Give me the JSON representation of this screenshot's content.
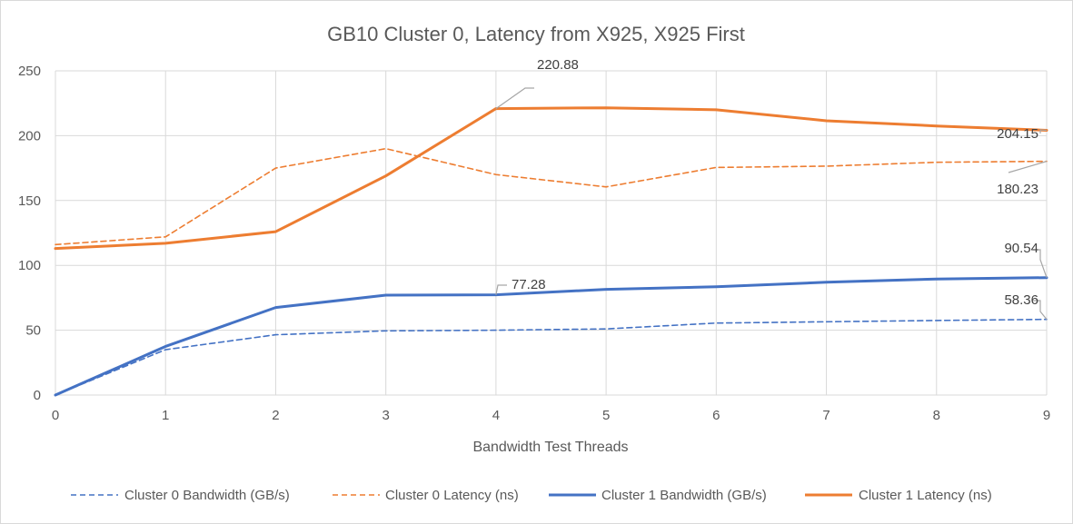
{
  "chart_data": {
    "type": "line",
    "title": "GB10 Cluster 0, Latency from X925, X925 First",
    "xlabel": "Bandwidth Test Threads",
    "ylabel": "",
    "x": [
      0,
      1,
      2,
      3,
      4,
      5,
      6,
      7,
      8,
      9
    ],
    "xlim": [
      0,
      9
    ],
    "ylim": [
      0,
      250
    ],
    "y_ticks": [
      0,
      50,
      100,
      150,
      200,
      250
    ],
    "grid": true,
    "legend_position": "bottom",
    "series": [
      {
        "name": "Cluster 0 Bandwidth (GB/s)",
        "color": "#4472c4",
        "dash": "dashed",
        "values": [
          0,
          35,
          46.5,
          49.5,
          50,
          51,
          55.5,
          56.5,
          57.5,
          58.36
        ]
      },
      {
        "name": "Cluster 0 Latency (ns)",
        "color": "#ed7d31",
        "dash": "dashed",
        "values": [
          116,
          122,
          175,
          190,
          170,
          160.5,
          175.5,
          176.5,
          179.5,
          180.23
        ]
      },
      {
        "name": "Cluster 1 Bandwidth (GB/s)",
        "color": "#4472c4",
        "dash": "solid",
        "values": [
          0,
          37.5,
          67.5,
          77,
          77.28,
          81.5,
          83.5,
          87,
          89.5,
          90.54
        ]
      },
      {
        "name": "Cluster 1 Latency (ns)",
        "color": "#ed7d31",
        "dash": "solid",
        "values": [
          113,
          117,
          126,
          169,
          220.88,
          221.5,
          220,
          211.5,
          207.5,
          204.15
        ]
      }
    ],
    "annotations": [
      {
        "series": 3,
        "index": 4,
        "text": "220.88"
      },
      {
        "series": 3,
        "index": 9,
        "text": "204.15"
      },
      {
        "series": 1,
        "index": 9,
        "text": "180.23"
      },
      {
        "series": 2,
        "index": 4,
        "text": "77.28"
      },
      {
        "series": 2,
        "index": 9,
        "text": "90.54"
      },
      {
        "series": 0,
        "index": 9,
        "text": "58.36"
      }
    ]
  }
}
